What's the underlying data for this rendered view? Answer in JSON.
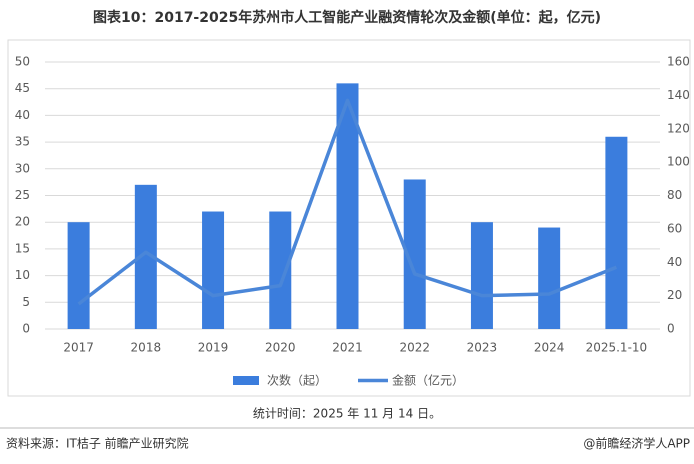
{
  "chart_data": {
    "type": "combo",
    "title": "图表10：2017-2025年苏州市人工智能产业融资情轮次及金额(单位：起，亿元)",
    "categories": [
      "2017",
      "2018",
      "2019",
      "2020",
      "2021",
      "2022",
      "2023",
      "2024",
      "2025.1-10"
    ],
    "series": [
      {
        "name": "次数（起）",
        "type": "bar",
        "color": "#3b7ddd",
        "values": [
          20,
          27,
          22,
          22,
          46,
          28,
          20,
          19,
          36
        ]
      },
      {
        "name": "金额（亿元）",
        "type": "line",
        "axis": "y2",
        "color": "#4a86d8",
        "values": [
          15,
          46,
          20,
          26,
          137,
          33,
          20,
          21,
          37
        ]
      }
    ],
    "ylim": [
      0,
      50
    ],
    "yticks": [
      0,
      5,
      10,
      15,
      20,
      25,
      30,
      35,
      40,
      45,
      50
    ],
    "y2lim": [
      0,
      160
    ],
    "y2ticks": [
      0,
      20,
      40,
      60,
      80,
      100,
      120,
      140,
      160
    ],
    "grid": true,
    "legend": "bottom"
  },
  "note": "统计时间：2025 年 11 月 14 日。",
  "source": "资料来源：IT桔子 前瞻产业研究院",
  "brand": "@前瞻经济学人APP"
}
